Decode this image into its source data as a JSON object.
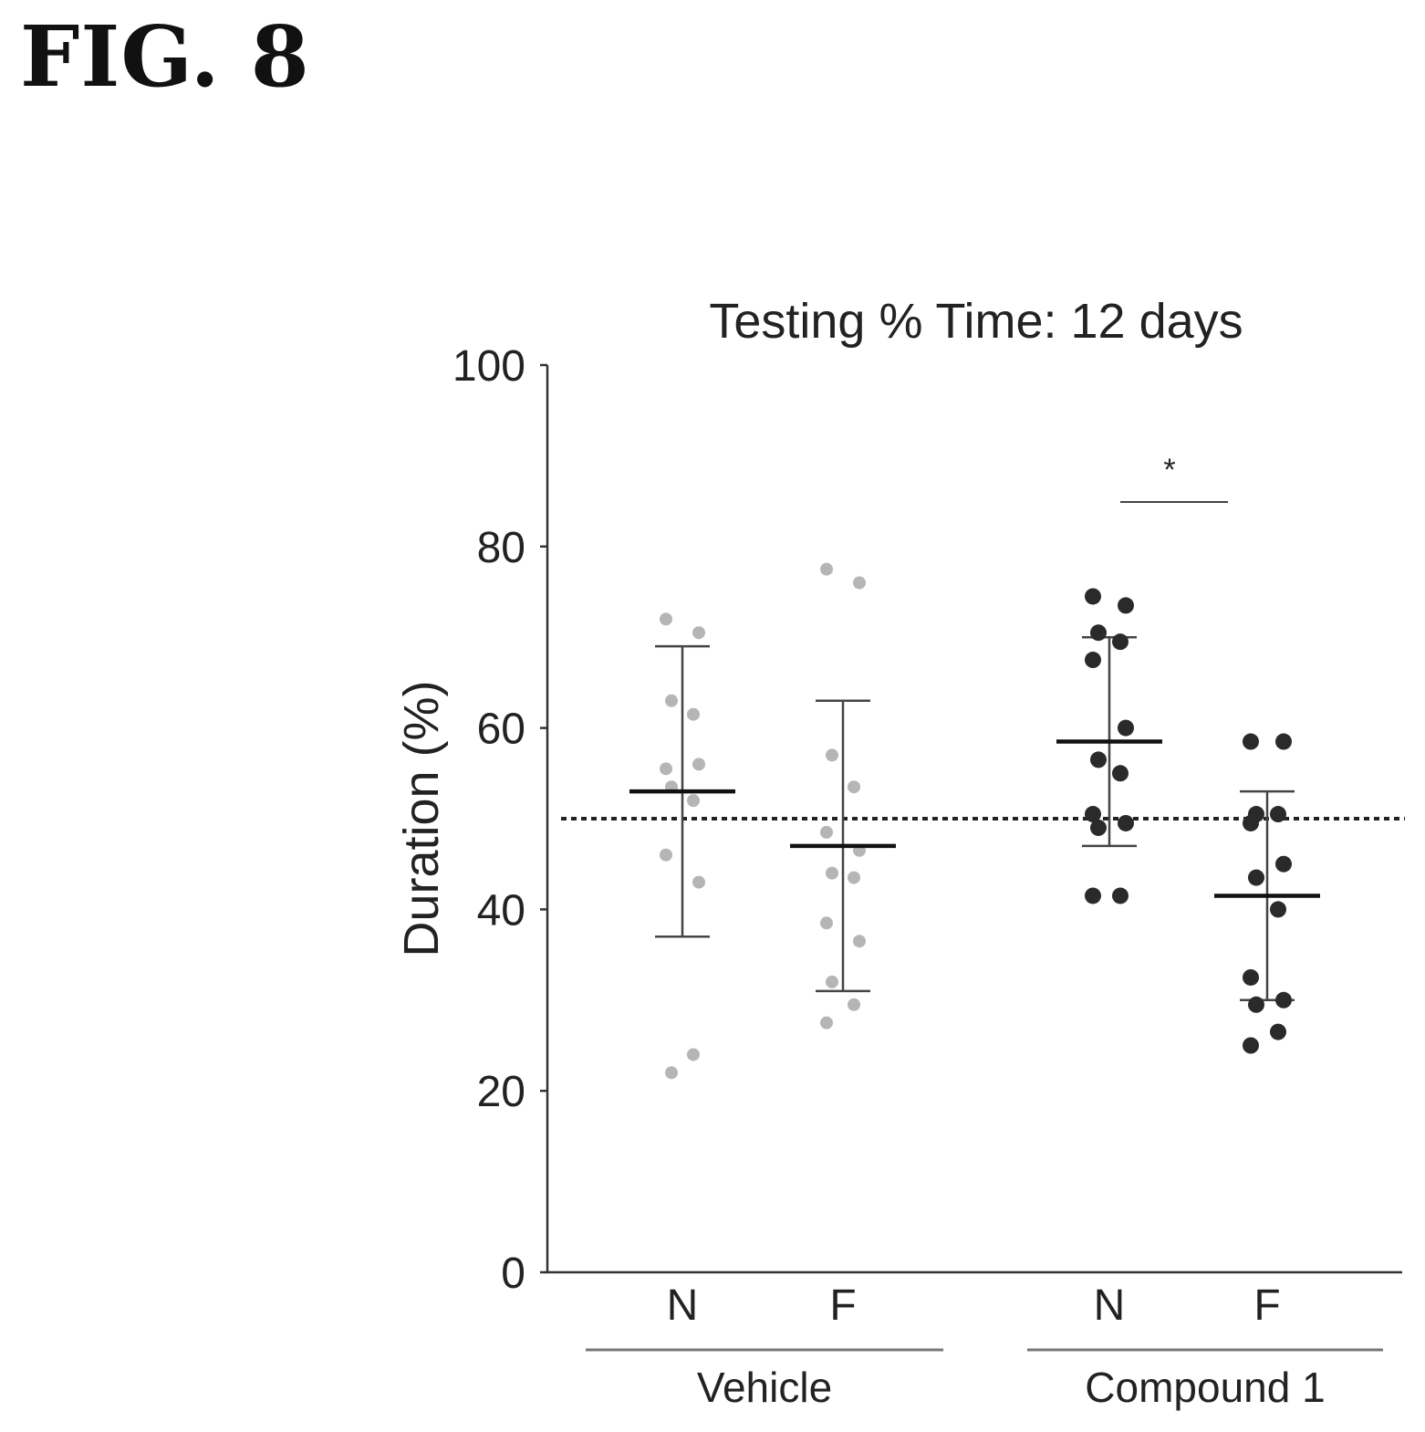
{
  "figure_label": "FIG. 8",
  "chart_data": {
    "type": "scatter",
    "title": "Testing % Time: 12 days",
    "ylabel": "Duration (%)",
    "xlabel": "",
    "ylim": [
      0,
      100
    ],
    "yticks": [
      0,
      20,
      40,
      60,
      80,
      100
    ],
    "reference_line": 50,
    "significance": {
      "label": "*",
      "between": [
        "Compound 1 N",
        "Compound 1 F"
      ]
    },
    "groups": [
      {
        "name": "Vehicle",
        "categories": [
          "N",
          "F"
        ]
      },
      {
        "name": "Compound 1",
        "categories": [
          "N",
          "F"
        ]
      }
    ],
    "colors": {
      "vehicle": "#b5b5b5",
      "compound": "#2a2a2a"
    },
    "series": [
      {
        "group": "Vehicle",
        "category": "N",
        "mean": 53,
        "sd_low": 37,
        "sd_high": 69,
        "points": [
          72,
          70.5,
          63,
          61.5,
          55.5,
          56,
          53.5,
          52,
          46,
          43,
          22,
          24
        ]
      },
      {
        "group": "Vehicle",
        "category": "F",
        "mean": 47,
        "sd_low": 31,
        "sd_high": 63,
        "points": [
          77.5,
          76,
          57,
          53.5,
          48.5,
          46.5,
          44,
          43.5,
          38.5,
          36.5,
          32,
          29.5,
          27.5
        ]
      },
      {
        "group": "Compound 1",
        "category": "N",
        "mean": 58.5,
        "sd_low": 47,
        "sd_high": 70,
        "points": [
          74.5,
          73.5,
          70.5,
          69.5,
          67.5,
          60,
          56.5,
          55,
          50.5,
          49.5,
          49,
          41.5,
          41.5
        ]
      },
      {
        "group": "Compound 1",
        "category": "F",
        "mean": 41.5,
        "sd_low": 30,
        "sd_high": 53,
        "points": [
          58.5,
          58.5,
          50.5,
          50.5,
          49.5,
          45,
          43.5,
          40,
          32.5,
          30,
          29.5,
          26.5,
          25
        ]
      }
    ]
  }
}
